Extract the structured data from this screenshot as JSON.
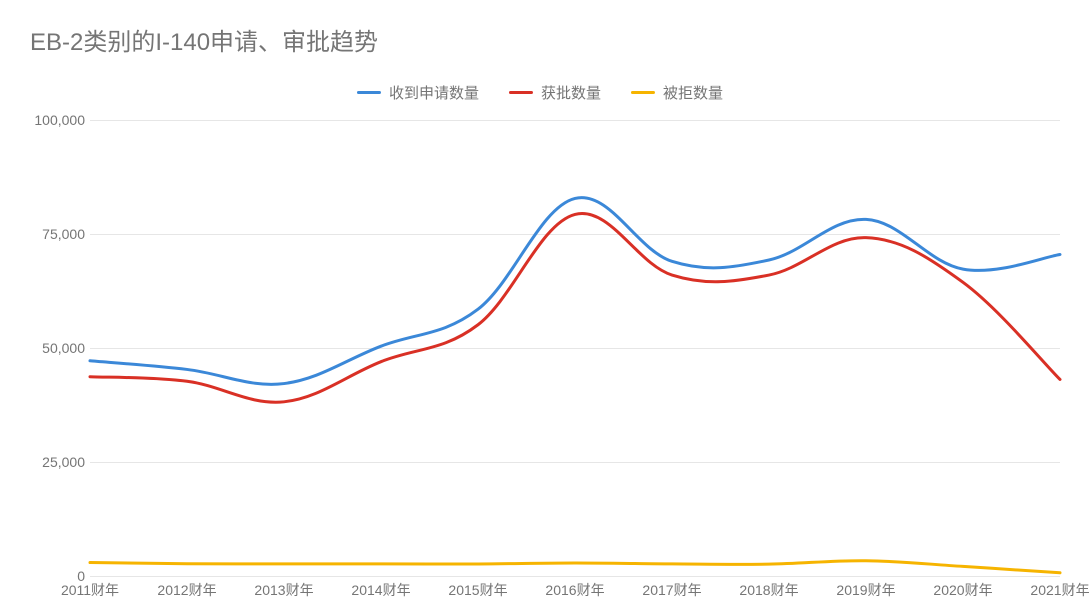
{
  "chart": {
    "type": "line",
    "title": "EB-2类别的I-140申请、审批趋势",
    "title_fontsize": 24,
    "title_color": "#757575",
    "background_color": "#ffffff",
    "grid_color": "#e6e6e6",
    "label_color": "#757575",
    "label_fontsize": 14,
    "categories": [
      "2011财年",
      "2012财年",
      "2013财年",
      "2014财年",
      "2015财年",
      "2016财年",
      "2017财年",
      "2018财年",
      "2019财年",
      "2020财年",
      "2021财年"
    ],
    "ylim": [
      0,
      100000
    ],
    "ytick_step": 25000,
    "yticks": [
      "0",
      "25,000",
      "50,000",
      "75,000",
      "100,000"
    ],
    "line_width": 3,
    "series": [
      {
        "name": "收到申请数量",
        "color": "#3b88d8",
        "values": [
          47200,
          45300,
          42200,
          50400,
          58500,
          82800,
          69000,
          69300,
          78200,
          67300,
          70500
        ]
      },
      {
        "name": "获批数量",
        "color": "#d93025",
        "values": [
          43700,
          42700,
          38200,
          47000,
          55100,
          79300,
          66000,
          66000,
          74200,
          64400,
          43100
        ]
      },
      {
        "name": "被拒数量",
        "color": "#f6b400",
        "values": [
          2950,
          2700,
          2660,
          2650,
          2640,
          2850,
          2650,
          2600,
          3350,
          2100,
          700
        ]
      }
    ],
    "legend_position": "top-center"
  }
}
